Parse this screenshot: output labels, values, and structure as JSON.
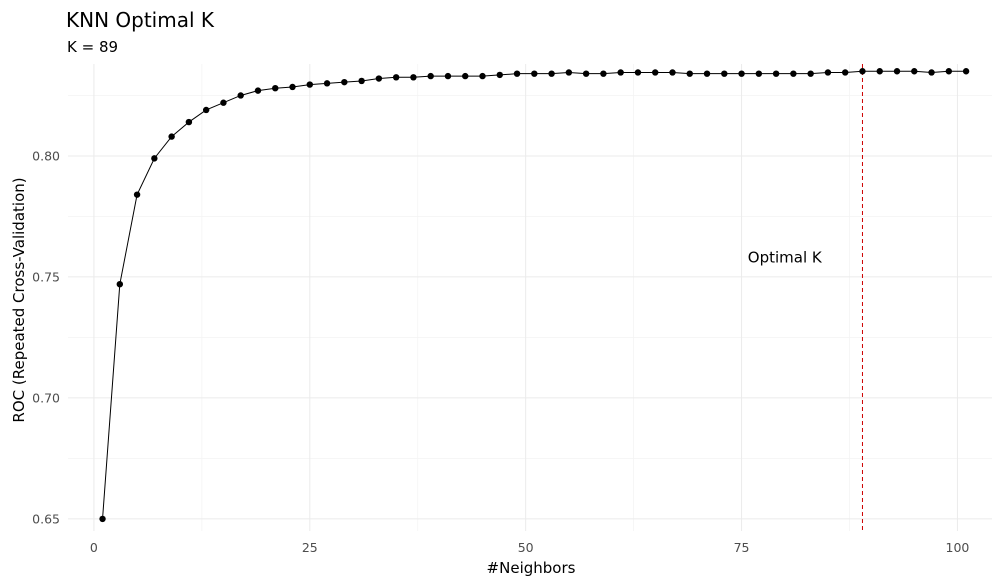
{
  "chart_data": {
    "type": "line",
    "title": "KNN Optimal K",
    "subtitle": "K = 89",
    "xlabel": "#Neighbors",
    "ylabel": "ROC (Repeated Cross-Validation)",
    "xlim": [
      -3,
      104
    ],
    "ylim": [
      0.645,
      0.838
    ],
    "x_ticks": [
      0,
      25,
      50,
      75,
      100
    ],
    "x_tick_labels": [
      "0",
      "25",
      "50",
      "75",
      "100"
    ],
    "y_ticks": [
      0.65,
      0.7,
      0.75,
      0.8
    ],
    "y_tick_labels": [
      "0.65",
      "0.70",
      "0.75",
      "0.80"
    ],
    "grid": true,
    "legend": "none",
    "series": [
      {
        "x": [
          1,
          3,
          5,
          7,
          9,
          11,
          13,
          15,
          17,
          19,
          21,
          23,
          25,
          27,
          29,
          31,
          33,
          35,
          37,
          39,
          41,
          43,
          45,
          47,
          49,
          51,
          53,
          55,
          57,
          59,
          61,
          63,
          65,
          67,
          69,
          71,
          73,
          75,
          77,
          79,
          81,
          83,
          85,
          87,
          89,
          91,
          93,
          95,
          97,
          99,
          101
        ],
        "values": [
          0.65,
          0.747,
          0.784,
          0.799,
          0.808,
          0.814,
          0.819,
          0.822,
          0.825,
          0.827,
          0.828,
          0.8285,
          0.8295,
          0.83,
          0.8305,
          0.831,
          0.832,
          0.8325,
          0.8325,
          0.833,
          0.833,
          0.833,
          0.833,
          0.8335,
          0.834,
          0.834,
          0.834,
          0.8345,
          0.834,
          0.834,
          0.8345,
          0.8345,
          0.8345,
          0.8345,
          0.834,
          0.834,
          0.834,
          0.834,
          0.834,
          0.834,
          0.834,
          0.834,
          0.8345,
          0.8345,
          0.835,
          0.835,
          0.835,
          0.835,
          0.8345,
          0.835,
          0.835
        ]
      }
    ],
    "vline": {
      "x": 89,
      "color": "#cc0000"
    },
    "annotation": {
      "text": "Optimal K",
      "x": 80,
      "y": 0.758
    },
    "colors": {
      "line": "#000000",
      "points": "#000000",
      "grid": "#ebebeb"
    }
  }
}
